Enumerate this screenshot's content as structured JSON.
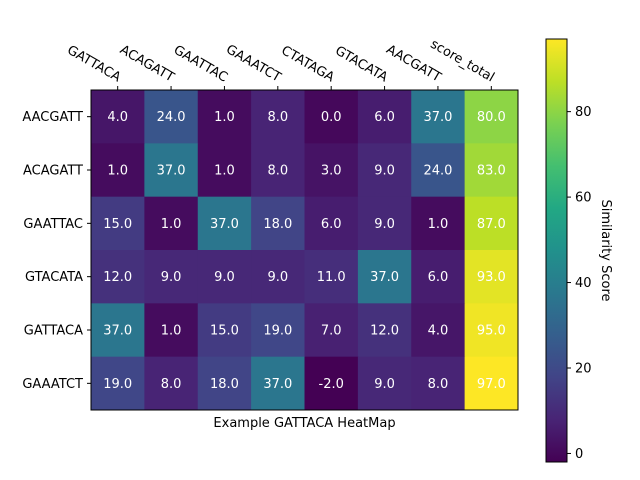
{
  "chart_data": {
    "type": "heatmap",
    "title": "",
    "xlabel": "Example GATTACA HeatMap",
    "ylabel": "",
    "x_labels": [
      "GATTACA",
      "ACAGATT",
      "GAATTAC",
      "GAAATCT",
      "CTATAGA",
      "GTACATA",
      "AACGATT",
      "score_total"
    ],
    "x_tick_position": "top",
    "y_labels": [
      "AACGATT",
      "ACAGATT",
      "GAATTAC",
      "GTACATA",
      "GATTACA",
      "GAAATCT"
    ],
    "values": [
      [
        4.0,
        24.0,
        1.0,
        8.0,
        0.0,
        6.0,
        37.0,
        80.0
      ],
      [
        1.0,
        37.0,
        1.0,
        8.0,
        3.0,
        9.0,
        24.0,
        83.0
      ],
      [
        15.0,
        1.0,
        37.0,
        18.0,
        6.0,
        9.0,
        1.0,
        87.0
      ],
      [
        12.0,
        9.0,
        9.0,
        9.0,
        11.0,
        37.0,
        6.0,
        93.0
      ],
      [
        37.0,
        1.0,
        15.0,
        19.0,
        7.0,
        12.0,
        4.0,
        95.0
      ],
      [
        19.0,
        8.0,
        18.0,
        37.0,
        -2.0,
        9.0,
        8.0,
        97.0
      ]
    ],
    "colormap": "viridis",
    "vmin": -2.0,
    "vmax": 97.0,
    "colorbar": {
      "label": "Similarity Score",
      "ticks": [
        0,
        20,
        40,
        60,
        80
      ]
    },
    "grid": false
  }
}
